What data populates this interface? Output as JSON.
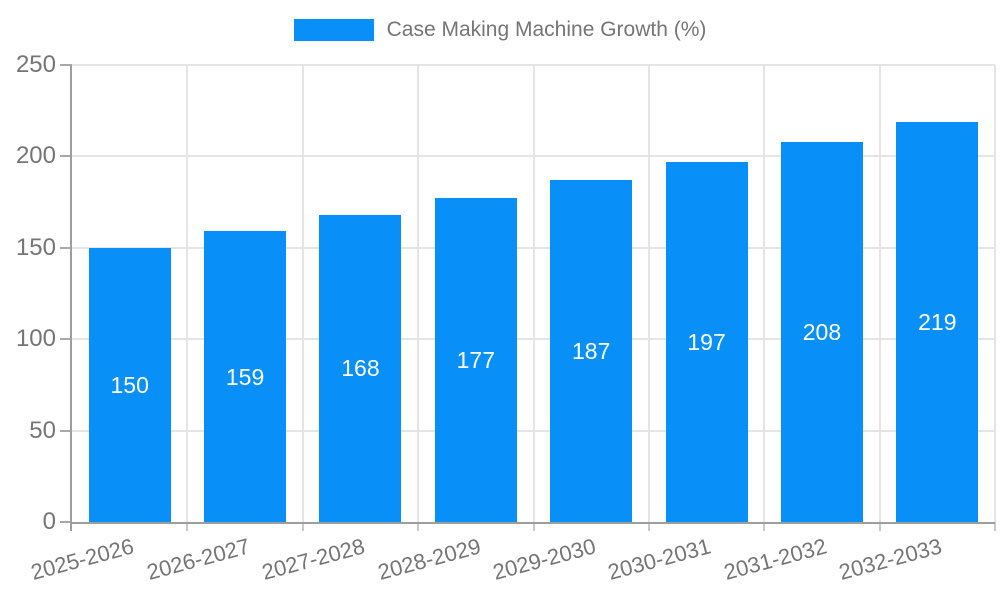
{
  "legend": {
    "label": "Case Making Machine Growth (%)"
  },
  "colors": {
    "bar": "#0890f8",
    "text": "#757575",
    "bar_label": "#ffffff",
    "grid": "#e5e5e5",
    "axis": "#9e9e9e",
    "tick_major": "#a9a9a9",
    "tick_minor": "#c9c9c9",
    "background": "#ffffff"
  },
  "chart_data": {
    "type": "bar",
    "title": "Case Making Machine Growth (%)",
    "series": [
      {
        "name": "Case Making Machine Growth (%)",
        "values": [
          150,
          159,
          168,
          177,
          187,
          197,
          208,
          219
        ]
      }
    ],
    "categories": [
      "2025-2026",
      "2026-2027",
      "2027-2028",
      "2028-2029",
      "2029-2030",
      "2030-2031",
      "2031-2032",
      "2032-2033"
    ],
    "bar_value_labels": [
      "150",
      "159",
      "168",
      "177",
      "187",
      "197",
      "208",
      "219"
    ],
    "xlabel": "",
    "ylabel": "",
    "ylim": [
      0,
      250
    ],
    "yticks": [
      0,
      50,
      100,
      150,
      200,
      250
    ],
    "grid": true,
    "legend_position": "top-center",
    "bar_label_position": "center-inside",
    "x_label_rotation_deg": -15
  }
}
